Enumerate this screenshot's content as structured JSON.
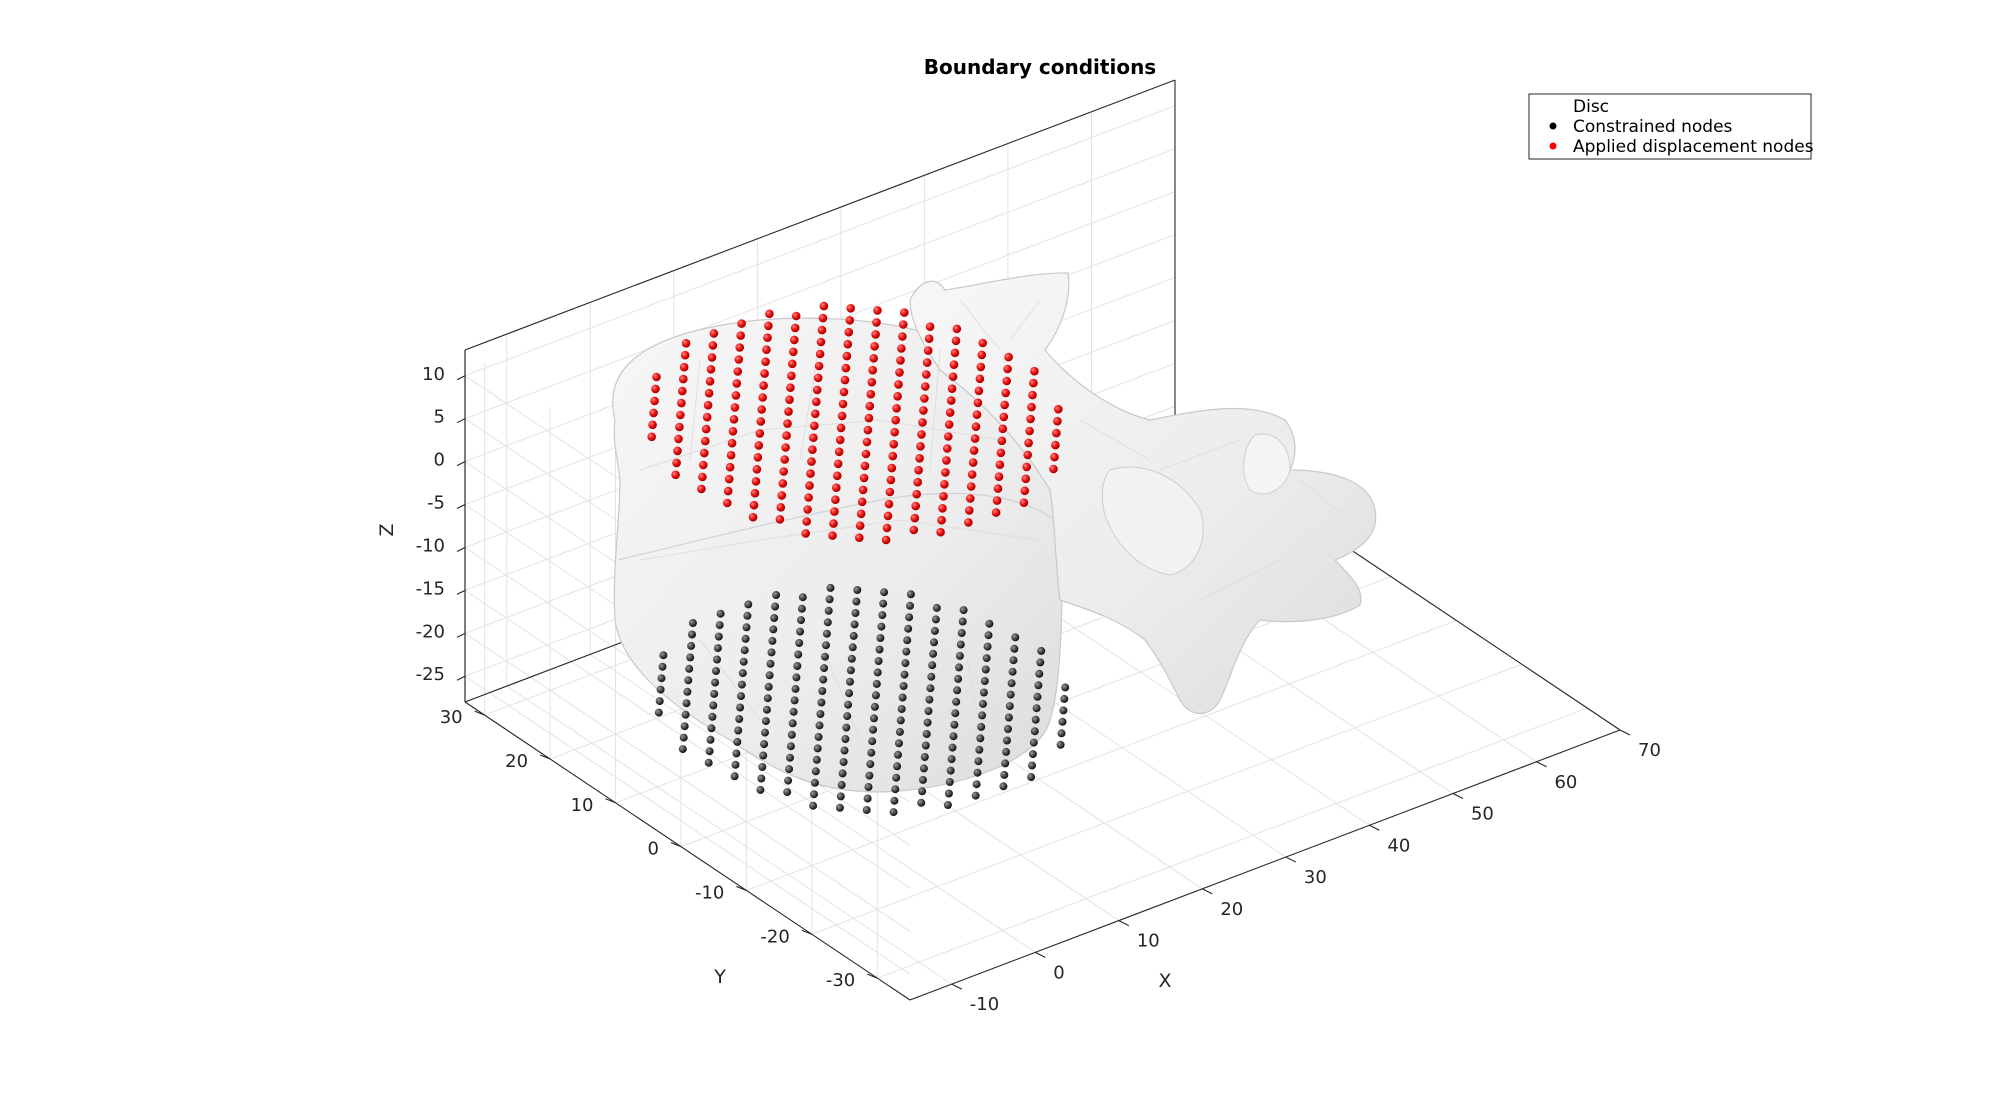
{
  "chart_data": {
    "type": "scatter3d",
    "title": "Boundary conditions",
    "xlabel": "X",
    "ylabel": "Y",
    "zlabel": "Z",
    "xlim": [
      -15,
      70
    ],
    "ylim": [
      -35,
      33
    ],
    "zlim": [
      -28,
      13
    ],
    "xticks": [
      -10,
      0,
      10,
      20,
      30,
      40,
      50,
      60,
      70
    ],
    "yticks": [
      30,
      20,
      10,
      0,
      -10,
      -20,
      -30
    ],
    "zticks": [
      10,
      5,
      0,
      -5,
      -10,
      -15,
      -20,
      -25
    ],
    "grid": true,
    "view": "3d-isometric",
    "legend_position": "top-right",
    "series": [
      {
        "name": "Disc",
        "kind": "surface",
        "color": "#d9d9d9"
      },
      {
        "name": "Constrained nodes",
        "kind": "points",
        "color": "#000000",
        "z": -25,
        "x_range": [
          -10,
          30
        ],
        "y_range": [
          -30,
          30
        ]
      },
      {
        "name": "Applied displacement nodes",
        "kind": "points",
        "color": "#ff0000",
        "z": 10,
        "x_range": [
          -10,
          30
        ],
        "y_range": [
          -30,
          30
        ]
      }
    ]
  },
  "legend": {
    "disc": "Disc",
    "constrained": "Constrained nodes",
    "applied": "Applied displacement nodes"
  },
  "colors": {
    "constrained": "#000000",
    "applied": "#ff0000",
    "mesh": "#eeeeee"
  }
}
